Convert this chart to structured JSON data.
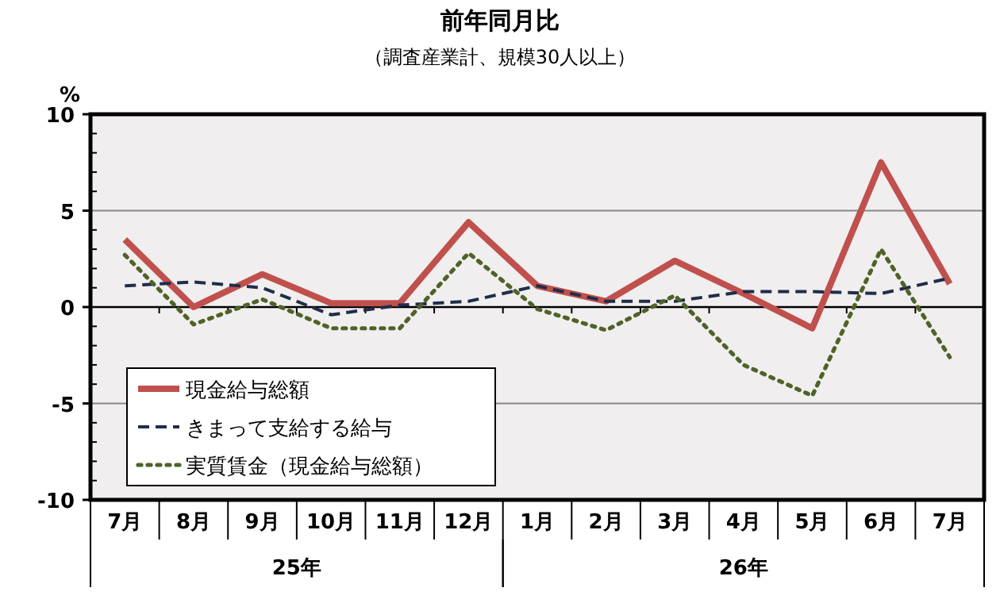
{
  "chart_data": {
    "type": "line",
    "title": "前年同月比",
    "subtitle": "（調査産業計、規模30人以上）",
    "ylabel": "%",
    "categories": [
      "7月",
      "8月",
      "9月",
      "10月",
      "11月",
      "12月",
      "1月",
      "2月",
      "3月",
      "4月",
      "5月",
      "6月",
      "7月"
    ],
    "annotations": [
      "25年",
      "26年"
    ],
    "ylim": [
      -10,
      10
    ],
    "yticks": [
      -10,
      -5,
      0,
      5,
      10
    ],
    "grid": "y",
    "legend": "bottom left",
    "marker": "none",
    "series": [
      {
        "name": "現金給与総額",
        "color": "#c0504d",
        "line_style": "solid",
        "values": [
          3.5,
          0,
          1.7,
          0.2,
          0.2,
          4.4,
          1.1,
          0.3,
          2.4,
          0.7,
          -1.1,
          7.5,
          1.2
        ]
      },
      {
        "name": "きまって支給する給与",
        "color": "#1f2d4a",
        "line_style": "dashed",
        "values": [
          1.1,
          1.3,
          1.0,
          -0.4,
          0.1,
          0.3,
          1.1,
          0.3,
          0.3,
          0.8,
          0.8,
          0.7,
          1.5
        ]
      },
      {
        "name": "実質賃金（現金給与総額）",
        "color": "#4f6228",
        "line_style": "dotted",
        "values": [
          2.7,
          -0.9,
          0.4,
          -1.1,
          -1.1,
          2.8,
          -0.1,
          -1.2,
          0.6,
          -3.0,
          -4.6,
          3.0,
          -2.6
        ]
      }
    ]
  }
}
